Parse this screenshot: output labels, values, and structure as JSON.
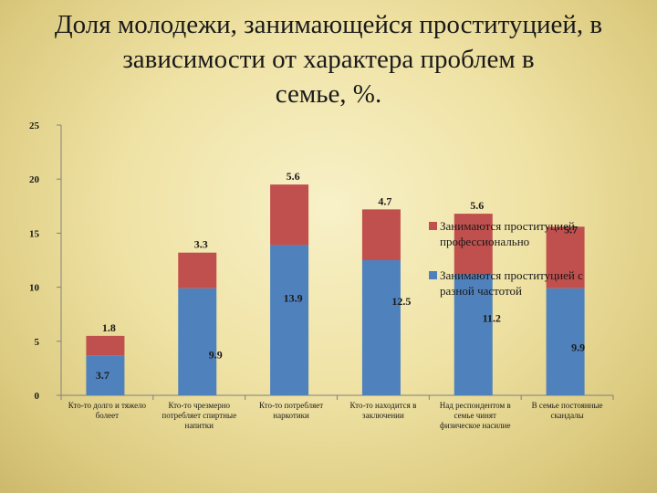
{
  "slide": {
    "title_lines": [
      "Доля молодежи, занимающейся проституцией, в",
      "зависимости от характера проблем в",
      "семье, %."
    ]
  },
  "chart_data": {
    "type": "bar",
    "stacked": true,
    "categories": [
      [
        "Кто-то долго и тяжело",
        "болеет"
      ],
      [
        "Кто-то чрезмерно",
        "потребляет спиртные",
        "напитки"
      ],
      [
        "Кто-то потребляет",
        "наркотики"
      ],
      [
        "Кто-то находится в",
        "заключении"
      ],
      [
        "Над респондентом в",
        "семье чинят",
        "физическое насилие"
      ],
      [
        "В семье постоянные",
        "скандалы"
      ]
    ],
    "series": [
      {
        "name": "Занимаются проституцией с разной частотой",
        "color": "#4f81bd",
        "values": [
          3.7,
          9.9,
          13.9,
          12.5,
          11.2,
          9.9
        ]
      },
      {
        "name": "Занимаются проституцией профессионально",
        "color": "#c0504d",
        "values": [
          1.8,
          3.3,
          5.6,
          4.7,
          5.6,
          5.7
        ]
      }
    ],
    "ylim": [
      0,
      25
    ],
    "yticks": [
      0,
      5,
      10,
      15,
      20,
      25
    ],
    "grid": false,
    "legend_position": "right",
    "legend": [
      {
        "lines": [
          "Занимаются проституцией",
          "профессионально"
        ],
        "color": "#c0504d"
      },
      {
        "lines": [
          "Занимаются проституцией с",
          "разной частотой"
        ],
        "color": "#4f81bd"
      }
    ]
  }
}
